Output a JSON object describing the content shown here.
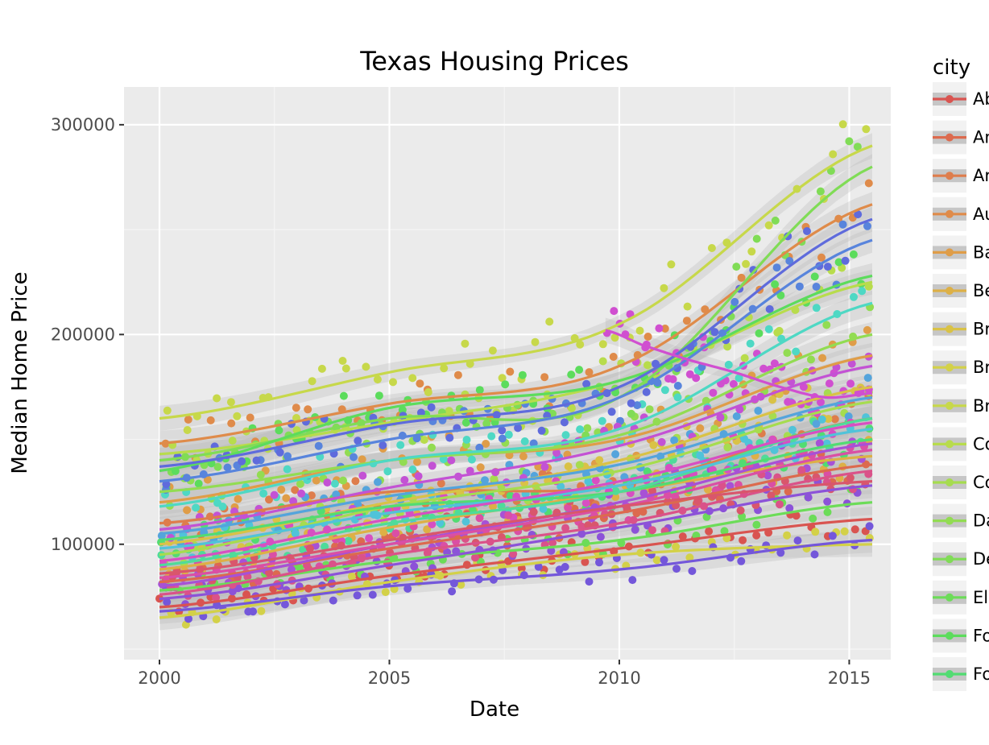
{
  "chart_data": {
    "type": "scatter",
    "title": "Texas Housing Prices",
    "xlabel": "Date",
    "ylabel": "Median Home Price",
    "xlim": [
      2000,
      2015.5
    ],
    "ylim": [
      45000,
      318000
    ],
    "x_ticks": [
      2000,
      2005,
      2010,
      2015
    ],
    "x_tick_labels": [
      "2000",
      "2005",
      "2010",
      "2015"
    ],
    "y_ticks": [
      100000,
      200000,
      300000
    ],
    "y_tick_labels": [
      "100000",
      "200000",
      "300000"
    ],
    "grid": true,
    "smooth": "loess",
    "legend": {
      "title": "city",
      "position": "right",
      "entries": [
        {
          "label": "Abilene",
          "color": "#d95450"
        },
        {
          "label": "Amarillo",
          "color": "#dc6a4e"
        },
        {
          "label": "Arlington",
          "color": "#de7d4c"
        },
        {
          "label": "Austin",
          "color": "#df8b4a"
        },
        {
          "label": "Bay Area",
          "color": "#df9d48"
        },
        {
          "label": "Beaumont",
          "color": "#ddb046"
        },
        {
          "label": "Brazoria County",
          "color": "#d9c246"
        },
        {
          "label": "Brownsville",
          "color": "#d3d148"
        },
        {
          "label": "Bryan-College Station",
          "color": "#c7d84a"
        },
        {
          "label": "Collin County",
          "color": "#b8dc4c"
        },
        {
          "label": "Corpus Christi",
          "color": "#a6dc4f"
        },
        {
          "label": "Dallas",
          "color": "#92dc52"
        },
        {
          "label": "Denton County",
          "color": "#80dc56"
        },
        {
          "label": "El Paso",
          "color": "#6cdc58"
        },
        {
          "label": "Fort Bend",
          "color": "#5cdc5c"
        },
        {
          "label": "Fort Worth",
          "color": "#52dc72"
        }
      ]
    },
    "series": [
      {
        "name": "Abilene",
        "color": "#d95450",
        "x": [
          2000,
          2005,
          2010,
          2015.5
        ],
        "y": [
          70000,
          85000,
          98000,
          112000
        ]
      },
      {
        "name": "Amarillo",
        "color": "#dc6a4e",
        "x": [
          2000,
          2005,
          2010,
          2015.5
        ],
        "y": [
          82000,
          98000,
          115000,
          138000
        ]
      },
      {
        "name": "Arlington",
        "color": "#de7d4c",
        "x": [
          2000,
          2005,
          2010,
          2015.5
        ],
        "y": [
          110000,
          125000,
          128000,
          160000
        ]
      },
      {
        "name": "Austin",
        "color": "#df8b4a",
        "x": [
          2000,
          2005,
          2010,
          2015.5
        ],
        "y": [
          148000,
          167000,
          185000,
          262000
        ]
      },
      {
        "name": "Bay Area",
        "color": "#df9d48",
        "x": [
          2000,
          2005,
          2010,
          2015.5
        ],
        "y": [
          120000,
          140000,
          150000,
          190000
        ]
      },
      {
        "name": "Beaumont",
        "color": "#ddb046",
        "x": [
          2000,
          2005,
          2010,
          2015.5
        ],
        "y": [
          88000,
          108000,
          125000,
          142000
        ]
      },
      {
        "name": "Brazoria County",
        "color": "#d9c246",
        "x": [
          2000,
          2005,
          2010,
          2015.5
        ],
        "y": [
          100000,
          120000,
          140000,
          175000
        ]
      },
      {
        "name": "Brownsville",
        "color": "#d3d148",
        "x": [
          2000,
          2005,
          2010,
          2015.5
        ],
        "y": [
          65000,
          82000,
          95000,
          100000
        ]
      },
      {
        "name": "Bryan-College Station",
        "color": "#c7d84a",
        "x": [
          2000,
          2005,
          2010,
          2015.5
        ],
        "y": [
          160000,
          182000,
          205000,
          290000
        ]
      },
      {
        "name": "Collin County",
        "color": "#b8dc4c",
        "x": [
          2000,
          2005,
          2010,
          2015.5
        ],
        "y": [
          143000,
          158000,
          178000,
          225000
        ]
      },
      {
        "name": "Corpus Christi",
        "color": "#a6dc4f",
        "x": [
          2000,
          2005,
          2010,
          2015.5
        ],
        "y": [
          95000,
          118000,
          135000,
          168000
        ]
      },
      {
        "name": "Dallas",
        "color": "#92dc52",
        "x": [
          2000,
          2005,
          2010,
          2015.5
        ],
        "y": [
          125000,
          140000,
          152000,
          200000
        ]
      },
      {
        "name": "Denton County",
        "color": "#80dc56",
        "x": [
          2000,
          2005,
          2010,
          2015.5
        ],
        "y": [
          140000,
          160000,
          170000,
          280000
        ]
      },
      {
        "name": "El Paso",
        "color": "#6cdc58",
        "x": [
          2000,
          2005,
          2010,
          2015.5
        ],
        "y": [
          78000,
          92000,
          102000,
          120000
        ]
      },
      {
        "name": "Fort Bend",
        "color": "#5cdc5c",
        "x": [
          2000,
          2005,
          2010,
          2015.5
        ],
        "y": [
          135000,
          165000,
          178000,
          228000
        ]
      },
      {
        "name": "Fort Worth",
        "color": "#52dc72",
        "x": [
          2000,
          2005,
          2010,
          2015.5
        ],
        "y": [
          102000,
          118000,
          125000,
          150000
        ]
      },
      {
        "color": "#4fdb9a",
        "x": [
          2000,
          2005,
          2010,
          2015.5
        ],
        "y": [
          90000,
          110000,
          125000,
          160000
        ]
      },
      {
        "color": "#4ed8c4",
        "x": [
          2000,
          2005,
          2010,
          2015.5
        ],
        "y": [
          118000,
          140000,
          155000,
          215000
        ]
      },
      {
        "color": "#50c3d9",
        "x": [
          2000,
          2005,
          2010,
          2015.5
        ],
        "y": [
          98000,
          115000,
          128000,
          155000
        ]
      },
      {
        "color": "#54a4dc",
        "x": [
          2000,
          2005,
          2010,
          2015.5
        ],
        "y": [
          105000,
          123000,
          138000,
          170000
        ]
      },
      {
        "color": "#5884dc",
        "x": [
          2000,
          2005,
          2010,
          2015.5
        ],
        "y": [
          130000,
          150000,
          170000,
          245000
        ]
      },
      {
        "color": "#5f6bdc",
        "x": [
          2000,
          2005,
          2010,
          2015.5
        ],
        "y": [
          137000,
          157000,
          175000,
          255000
        ]
      },
      {
        "color": "#7457da",
        "x": [
          2000,
          2005,
          2010,
          2015.5
        ],
        "y": [
          68000,
          80000,
          88000,
          102000
        ]
      },
      {
        "color": "#8c52d8",
        "x": [
          2000,
          2005,
          2010,
          2015.5
        ],
        "y": [
          74000,
          90000,
          108000,
          128000
        ]
      },
      {
        "color": "#a751d6",
        "x": [
          2000,
          2005,
          2010,
          2015.5
        ],
        "y": [
          80000,
          100000,
          120000,
          148000
        ]
      },
      {
        "color": "#c352d4",
        "x": [
          2000,
          2005,
          2010,
          2015.5
        ],
        "y": [
          107000,
          127000,
          147000,
          185000
        ]
      },
      {
        "color": "#d74fc2",
        "x": [
          2000,
          2005,
          2010,
          2015.5
        ],
        "y": [
          92000,
          112000,
          130000,
          158000
        ]
      },
      {
        "color": "#da4fa5",
        "x": [
          2000,
          2005,
          2010,
          2015.5
        ],
        "y": [
          84000,
          100000,
          118000,
          145000
        ]
      },
      {
        "color": "#da5289",
        "x": [
          2000,
          2005,
          2010,
          2015.5
        ],
        "y": [
          76000,
          95000,
          110000,
          135000
        ]
      },
      {
        "color": "#d9566c",
        "x": [
          2000,
          2005,
          2010,
          2015.5
        ],
        "y": [
          86000,
          102000,
          118000,
          130000
        ]
      },
      {
        "color": "#d04fd0",
        "x": [
          2009.7,
          2010.5,
          2011.5,
          2012.5,
          2013.5,
          2014.5,
          2015.5
        ],
        "y": [
          202000,
          195000,
          188000,
          182000,
          175000,
          170000,
          172000
        ]
      }
    ]
  }
}
